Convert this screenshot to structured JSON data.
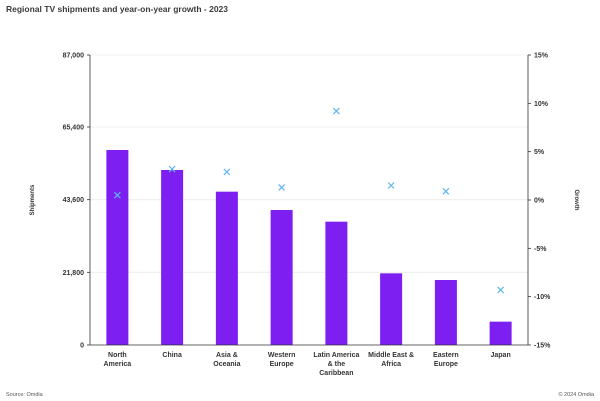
{
  "header": {
    "title": "Regional TV shipments and year-on-year growth - 2023"
  },
  "footer": {
    "source": "Source: Omdia",
    "copyright": "© 2024 Omdia"
  },
  "chart_data": {
    "type": "bar",
    "title": "Regional TV shipments and year-on-year growth - 2023",
    "categories": [
      [
        "North",
        "America"
      ],
      [
        "China"
      ],
      [
        "Asia &",
        "Oceania"
      ],
      [
        "Western",
        "Europe"
      ],
      [
        "Latin America",
        "& the",
        "Caribbean"
      ],
      [
        "Middle East &",
        "Africa"
      ],
      [
        "Eastern",
        "Europe"
      ],
      [
        "Japan"
      ]
    ],
    "series": [
      {
        "name": "Shipments",
        "type": "bar",
        "axis": "left",
        "color": "#7c1ff0",
        "values": [
          58500,
          52500,
          46000,
          40500,
          37000,
          21500,
          19500,
          7000
        ]
      },
      {
        "name": "Growth",
        "type": "scatter",
        "axis": "right",
        "color": "#61b6f0",
        "values": [
          0.5,
          3.2,
          2.9,
          1.3,
          9.2,
          1.5,
          0.9,
          -9.3
        ]
      }
    ],
    "ylabel": "Shipments",
    "y2label": "Growth",
    "ylim": [
      0,
      87000
    ],
    "y2lim": [
      -15,
      15
    ],
    "yticks": [
      0,
      21800,
      43600,
      65400,
      87000
    ],
    "ytick_labels": [
      "0",
      "21,800",
      "43,600",
      "65,400",
      "87,000"
    ],
    "y2ticks": [
      -15,
      -10,
      -5,
      0,
      5,
      10,
      15
    ],
    "y2tick_labels": [
      "-15%",
      "-10%",
      "-5%",
      "0%",
      "5%",
      "10%",
      "15%"
    ],
    "grid": true,
    "legend": "none"
  }
}
